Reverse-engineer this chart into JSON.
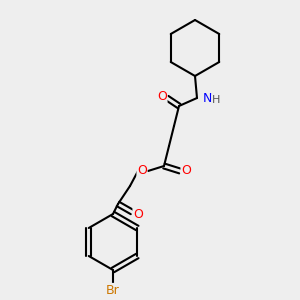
{
  "background_color": "#eeeeee",
  "bond_color": "#000000",
  "bond_width": 1.5,
  "atom_colors": {
    "O": "#ff0000",
    "N": "#0000ff",
    "Br": "#cc7700",
    "H": "#555555",
    "C": "#000000"
  },
  "font_size": 9,
  "font_size_small": 8
}
